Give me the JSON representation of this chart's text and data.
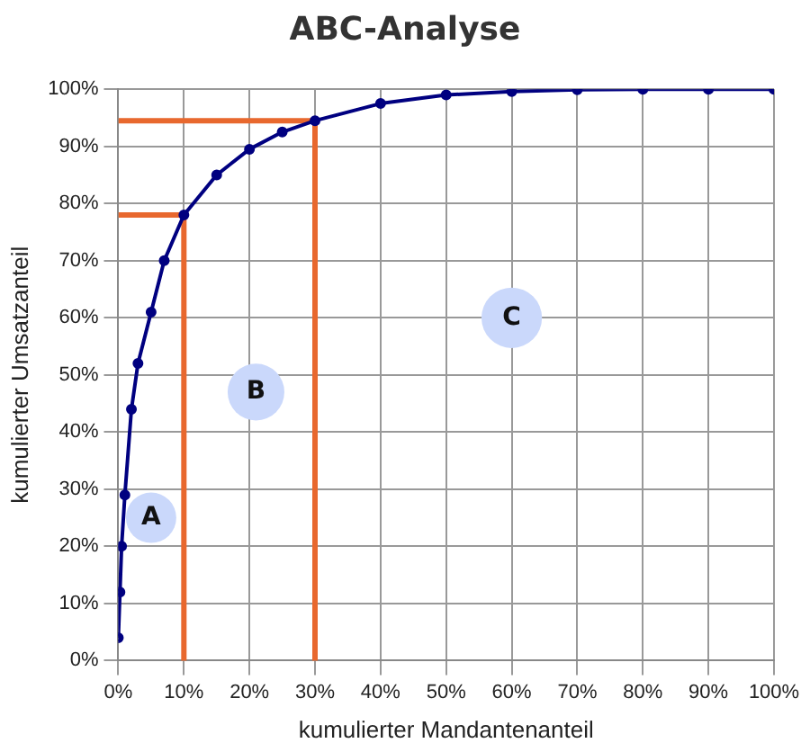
{
  "chart_data": {
    "type": "line",
    "title": "ABC-Analyse",
    "xlabel": "kumulierter Mandantenanteil",
    "ylabel": "kumulierter Umsatzanteil",
    "x": [
      0,
      0.25,
      0.5,
      1,
      2,
      3,
      5,
      7,
      10,
      15,
      20,
      25,
      30,
      40,
      50,
      60,
      70,
      80,
      90,
      100
    ],
    "series": [
      {
        "color": "#000080",
        "marker": "circle",
        "values": [
          4,
          12,
          20,
          29,
          44,
          52,
          61,
          70,
          78,
          85,
          89.5,
          92.5,
          94.5,
          97.5,
          99,
          99.6,
          99.9,
          100,
          100,
          100
        ]
      },
      {
        "type": "line",
        "color": "#e8682e",
        "marker": "none",
        "x": [
          0,
          10,
          10
        ],
        "values": [
          78,
          78,
          0
        ]
      },
      {
        "type": "line",
        "color": "#e8682e",
        "marker": "none",
        "x": [
          0,
          30,
          30
        ],
        "values": [
          94.5,
          94.5,
          0
        ]
      }
    ],
    "xlim": [
      0,
      100
    ],
    "ylim": [
      0,
      100
    ],
    "xticks": [
      {
        "value": 0,
        "label": "0%"
      },
      {
        "value": 10,
        "label": "10%"
      },
      {
        "value": 20,
        "label": "20%"
      },
      {
        "value": 30,
        "label": "30%"
      },
      {
        "value": 40,
        "label": "40%"
      },
      {
        "value": 50,
        "label": "50%"
      },
      {
        "value": 60,
        "label": "60%"
      },
      {
        "value": 70,
        "label": "70%"
      },
      {
        "value": 80,
        "label": "80%"
      },
      {
        "value": 90,
        "label": "90%"
      },
      {
        "value": 100,
        "label": "100%"
      }
    ],
    "yticks": [
      {
        "value": 0,
        "label": "0%"
      },
      {
        "value": 10,
        "label": "10%"
      },
      {
        "value": 20,
        "label": "20%"
      },
      {
        "value": 30,
        "label": "30%"
      },
      {
        "value": 40,
        "label": "40%"
      },
      {
        "value": 50,
        "label": "50%"
      },
      {
        "value": 60,
        "label": "60%"
      },
      {
        "value": 70,
        "label": "70%"
      },
      {
        "value": 80,
        "label": "80%"
      },
      {
        "value": 90,
        "label": "90%"
      },
      {
        "value": 100,
        "label": "100%"
      }
    ],
    "annotations": [
      {
        "text": "A",
        "x": 5,
        "y": 25
      },
      {
        "text": "B",
        "x": 21,
        "y": 47
      },
      {
        "text": "C",
        "x": 60,
        "y": 60
      }
    ],
    "grid": true,
    "legend": false
  }
}
